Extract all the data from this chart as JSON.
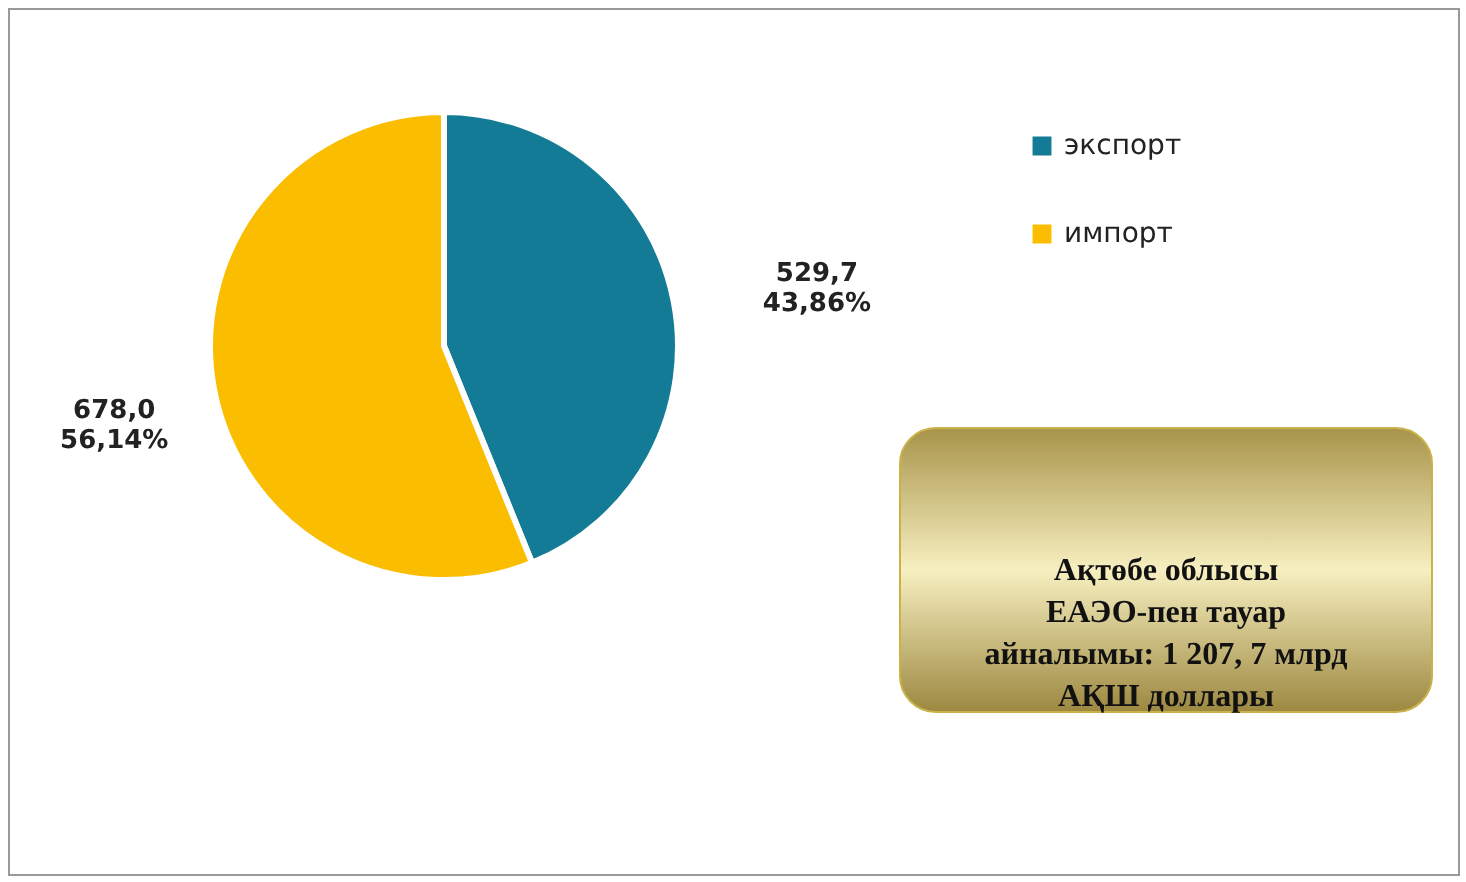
{
  "chart_data": {
    "type": "pie",
    "categories": [
      "экспорт",
      "импорт"
    ],
    "values": [
      529.7,
      678.0
    ],
    "colors": [
      "#137b95",
      "#fbbd00"
    ],
    "value_labels": [
      "529,7\n43,86%",
      "678,0\n56,14%"
    ],
    "legend": "top right",
    "annotations": [
      "Ақтөбе облысы\nЕАЭО-пен тауар\nайналымы: 1 207, 7 млрд\nАҚШ доллары"
    ]
  }
}
